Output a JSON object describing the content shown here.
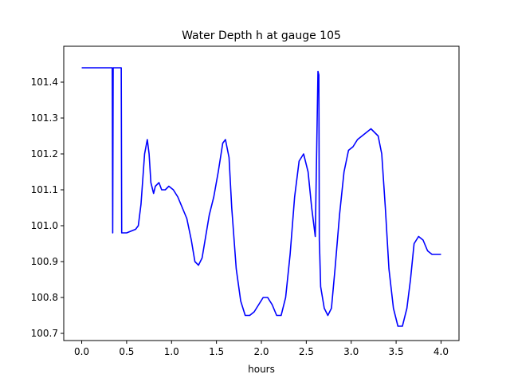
{
  "chart_data": {
    "type": "line",
    "title": "Water Depth h at gauge 105",
    "xlabel": "hours",
    "ylabel": "",
    "xlim": [
      -0.2,
      4.2
    ],
    "ylim": [
      100.68,
      101.5
    ],
    "xticks": [
      0.0,
      0.5,
      1.0,
      1.5,
      2.0,
      2.5,
      3.0,
      3.5,
      4.0
    ],
    "xtick_labels": [
      "0.0",
      "0.5",
      "1.0",
      "1.5",
      "2.0",
      "2.5",
      "3.0",
      "3.5",
      "4.0"
    ],
    "yticks": [
      100.7,
      100.8,
      100.9,
      101.0,
      101.1,
      101.2,
      101.3,
      101.4
    ],
    "ytick_labels": [
      "100.7",
      "100.8",
      "100.9",
      "101.0",
      "101.1",
      "101.2",
      "101.3",
      "101.4"
    ],
    "grid": false,
    "line_color": "#0000ff",
    "series": [
      {
        "x": [
          0.0,
          0.2,
          0.34,
          0.345,
          0.35,
          0.355,
          0.36,
          0.44,
          0.445,
          0.45,
          0.5,
          0.55,
          0.6,
          0.63,
          0.66,
          0.7,
          0.73,
          0.75,
          0.77,
          0.8,
          0.82,
          0.86,
          0.89,
          0.93,
          0.97,
          1.02,
          1.07,
          1.12,
          1.17,
          1.22,
          1.26,
          1.3,
          1.34,
          1.38,
          1.42,
          1.47,
          1.52,
          1.57,
          1.6,
          1.64,
          1.67,
          1.72,
          1.77,
          1.82,
          1.87,
          1.92,
          1.97,
          2.02,
          2.07,
          2.12,
          2.17,
          2.22,
          2.27,
          2.32,
          2.37,
          2.42,
          2.47,
          2.52,
          2.56,
          2.6,
          2.63,
          2.64,
          2.645,
          2.65,
          2.66,
          2.7,
          2.74,
          2.78,
          2.82,
          2.87,
          2.92,
          2.97,
          3.02,
          3.07,
          3.12,
          3.17,
          3.22,
          3.26,
          3.3,
          3.34,
          3.38,
          3.42,
          3.47,
          3.52,
          3.57,
          3.62,
          3.66,
          3.7,
          3.75,
          3.8,
          3.85,
          3.9,
          3.95,
          4.0
        ],
        "y": [
          101.44,
          101.44,
          101.44,
          100.98,
          101.44,
          101.44,
          101.44,
          101.44,
          100.98,
          100.98,
          100.98,
          100.985,
          100.99,
          101.0,
          101.06,
          101.2,
          101.24,
          101.2,
          101.12,
          101.09,
          101.11,
          101.12,
          101.1,
          101.1,
          101.11,
          101.1,
          101.08,
          101.05,
          101.02,
          100.96,
          100.9,
          100.89,
          100.91,
          100.97,
          101.03,
          101.08,
          101.15,
          101.23,
          101.24,
          101.19,
          101.05,
          100.88,
          100.79,
          100.75,
          100.75,
          100.76,
          100.78,
          100.8,
          100.8,
          100.78,
          100.75,
          100.75,
          100.8,
          100.92,
          101.08,
          101.18,
          101.2,
          101.15,
          101.05,
          100.97,
          101.43,
          101.42,
          100.96,
          100.92,
          100.83,
          100.77,
          100.75,
          100.77,
          100.88,
          101.03,
          101.15,
          101.21,
          101.22,
          101.24,
          101.25,
          101.26,
          101.27,
          101.26,
          101.25,
          101.2,
          101.05,
          100.88,
          100.77,
          100.72,
          100.72,
          100.77,
          100.85,
          100.95,
          100.97,
          100.96,
          100.93,
          100.92,
          100.92,
          100.92
        ]
      }
    ]
  }
}
